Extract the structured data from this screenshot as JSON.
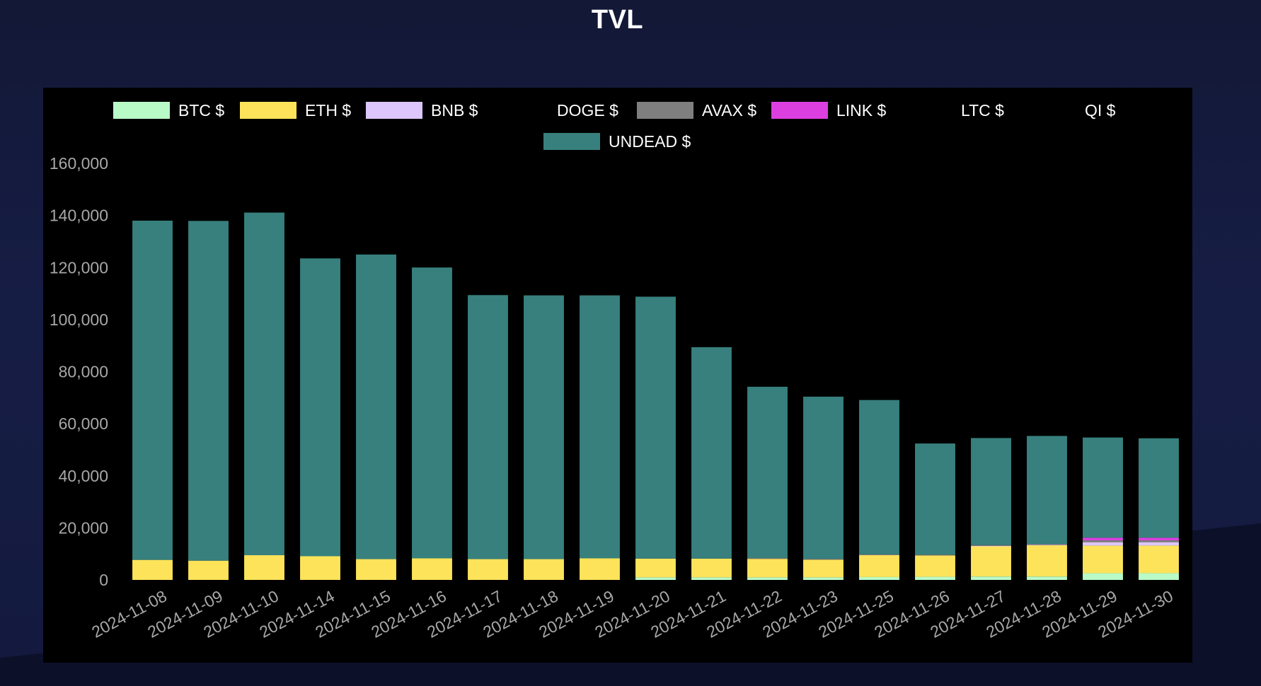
{
  "page": {
    "title": "TVL"
  },
  "colors": {
    "page_background": "#141a3e",
    "panel_background": "#000000",
    "text": "#ffffff",
    "axis_text": "#a8a8a8"
  },
  "chart_data": {
    "type": "bar",
    "stacked": true,
    "title": "TVL",
    "xlabel": "",
    "ylabel": "",
    "ylim": [
      0,
      160000
    ],
    "yticks": [
      0,
      20000,
      40000,
      60000,
      80000,
      100000,
      120000,
      140000,
      160000
    ],
    "ytick_labels": [
      "0",
      "20,000",
      "40,000",
      "60,000",
      "80,000",
      "100,000",
      "120,000",
      "140,000",
      "160,000"
    ],
    "grid": false,
    "legend_position": "top",
    "categories": [
      "2024-11-08",
      "2024-11-09",
      "2024-11-10",
      "2024-11-14",
      "2024-11-15",
      "2024-11-16",
      "2024-11-17",
      "2024-11-18",
      "2024-11-19",
      "2024-11-20",
      "2024-11-21",
      "2024-11-22",
      "2024-11-23",
      "2024-11-25",
      "2024-11-26",
      "2024-11-27",
      "2024-11-28",
      "2024-11-29",
      "2024-11-30"
    ],
    "series": [
      {
        "name": "BTC $",
        "color": "#b9fbc7",
        "values": [
          0,
          0,
          0,
          0,
          0,
          0,
          0,
          0,
          0,
          1000,
          1000,
          1000,
          1000,
          1100,
          1200,
          1300,
          1300,
          2600,
          2600
        ]
      },
      {
        "name": "ETH $",
        "color": "#fde35a",
        "values": [
          7700,
          7400,
          9500,
          9100,
          8000,
          8300,
          8000,
          8000,
          8300,
          7200,
          7200,
          7100,
          6800,
          8400,
          8200,
          11600,
          12000,
          10600,
          10600
        ]
      },
      {
        "name": "BNB $",
        "color": "#dcc6fb",
        "values": [
          0,
          0,
          0,
          0,
          0,
          0,
          0,
          0,
          0,
          0,
          0,
          0,
          0,
          0,
          0,
          200,
          200,
          1300,
          1300
        ]
      },
      {
        "name": "DOGE $",
        "color": "#000000",
        "values": [
          0,
          0,
          0,
          0,
          0,
          0,
          0,
          0,
          0,
          0,
          0,
          0,
          0,
          0,
          0,
          0,
          0,
          0,
          0
        ]
      },
      {
        "name": "AVAX $",
        "color": "#7f7f7f",
        "values": [
          0,
          0,
          0,
          0,
          0,
          0,
          0,
          0,
          0,
          0,
          0,
          300,
          300,
          300,
          300,
          300,
          300,
          700,
          700
        ]
      },
      {
        "name": "LINK $",
        "color": "#dc3fe0",
        "values": [
          0,
          0,
          0,
          0,
          0,
          0,
          0,
          0,
          0,
          0,
          0,
          0,
          0,
          0,
          0,
          0,
          0,
          1000,
          1000
        ]
      },
      {
        "name": "LTC $",
        "color": "#000000",
        "values": [
          0,
          0,
          0,
          0,
          0,
          0,
          0,
          0,
          0,
          0,
          0,
          0,
          0,
          0,
          0,
          0,
          0,
          0,
          0
        ]
      },
      {
        "name": "QI $",
        "color": "#000000",
        "values": [
          0,
          0,
          0,
          0,
          0,
          0,
          0,
          0,
          0,
          0,
          0,
          0,
          0,
          0,
          0,
          0,
          0,
          0,
          0
        ]
      },
      {
        "name": "UNDEAD $",
        "color": "#37807d",
        "values": [
          130300,
          130500,
          131600,
          114400,
          117000,
          111700,
          101400,
          101300,
          101000,
          100600,
          81200,
          65800,
          62300,
          59300,
          42700,
          41100,
          41500,
          38500,
          38200
        ]
      }
    ]
  }
}
